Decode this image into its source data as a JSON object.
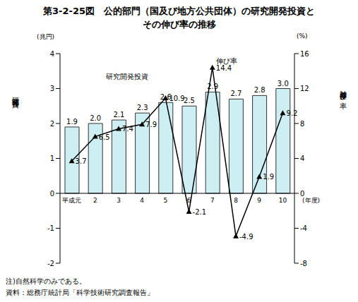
{
  "chart_data": {
    "type": "bar",
    "title": [
      "第3-2-25図　公的部門（国及び地方公共団体）の研究開発投資と",
      "その伸び率の推移"
    ],
    "categories": [
      "平成元",
      "2",
      "3",
      "4",
      "5",
      "6",
      "7",
      "8",
      "9",
      "10"
    ],
    "x_label": "(年度)",
    "y_label": "研究開発投資",
    "y_unit": "(兆円)",
    "y2_label": "対前年度伸び率",
    "y2_unit": "(%)",
    "ylim": [
      -2,
      4
    ],
    "yticks": [
      -2,
      -1,
      0,
      1,
      2,
      3,
      4
    ],
    "y2lim": [
      -8,
      16
    ],
    "y2ticks": [
      -8,
      -4,
      0,
      4,
      8,
      12,
      16
    ],
    "data_labels": true,
    "grid": false,
    "series": [
      {
        "name": "研究開発投資",
        "type": "bar",
        "color": "#cdeef2",
        "values": [
          1.9,
          2.0,
          2.1,
          2.3,
          2.6,
          2.5,
          2.9,
          2.7,
          2.8,
          3.0
        ],
        "value_labels": [
          "1.9",
          "2.0",
          "2.1",
          "2.3",
          "2.6",
          "2.5",
          "2.9",
          "2.7",
          "2.8",
          "3.0"
        ]
      },
      {
        "name": "伸び率",
        "type": "line",
        "axis": "y2",
        "color": "#000000",
        "marker": "triangle",
        "values": [
          3.7,
          6.5,
          7.4,
          7.9,
          10.9,
          -2.1,
          14.4,
          -4.9,
          1.9,
          9.2
        ]
      }
    ],
    "notes": [
      "注)自然科学のみである。",
      "資料：総務庁統計局「科学技術研究調査報告」"
    ]
  }
}
